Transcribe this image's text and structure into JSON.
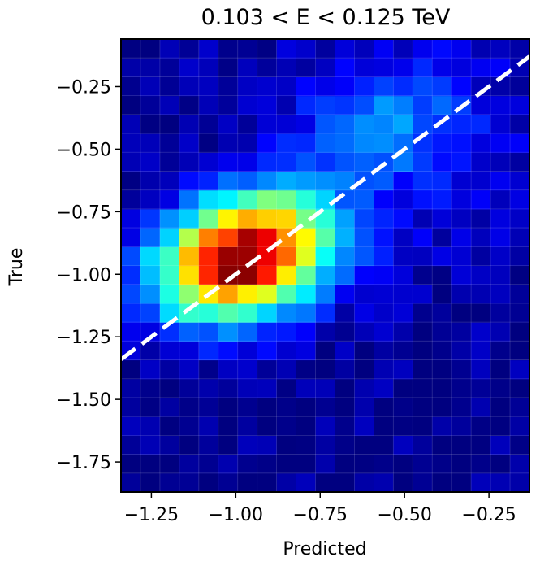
{
  "chart_data": {
    "type": "heatmap",
    "title": "0.103 < E < 0.125 TeV",
    "xlabel": "Predicted",
    "ylabel": "True",
    "xlim": [
      -1.34,
      -0.13
    ],
    "ylim": [
      -1.87,
      -0.06
    ],
    "x_ticks": [
      -1.25,
      -1.0,
      -0.75,
      -0.5,
      -0.25
    ],
    "x_tick_labels": [
      "−1.25",
      "−1.00",
      "−0.75",
      "−0.50",
      "−0.25"
    ],
    "y_ticks": [
      -0.25,
      -0.5,
      -0.75,
      -1.0,
      -1.25,
      -1.5,
      -1.75
    ],
    "y_tick_labels": [
      "−0.25",
      "−0.50",
      "−0.75",
      "−1.00",
      "−1.25",
      "−1.50",
      "−1.75"
    ],
    "colormap": "jet",
    "grid": true,
    "diagonal": {
      "from": [
        -1.34,
        -1.34
      ],
      "to": [
        -0.13,
        -0.13
      ],
      "style": "dashed",
      "color": "#ffffff"
    },
    "bins": {
      "nx": 21,
      "ny": 24
    },
    "hotspots": [
      {
        "x": -0.95,
        "y": -0.85,
        "intensity": 1.0
      },
      {
        "x": -1.0,
        "y": -0.97,
        "intensity": 0.94
      },
      {
        "x": -1.05,
        "y": -0.92,
        "intensity": 0.85
      }
    ],
    "colors": {
      "low": "#00008f",
      "high": "#7f0000",
      "line": "#ffffff"
    }
  }
}
